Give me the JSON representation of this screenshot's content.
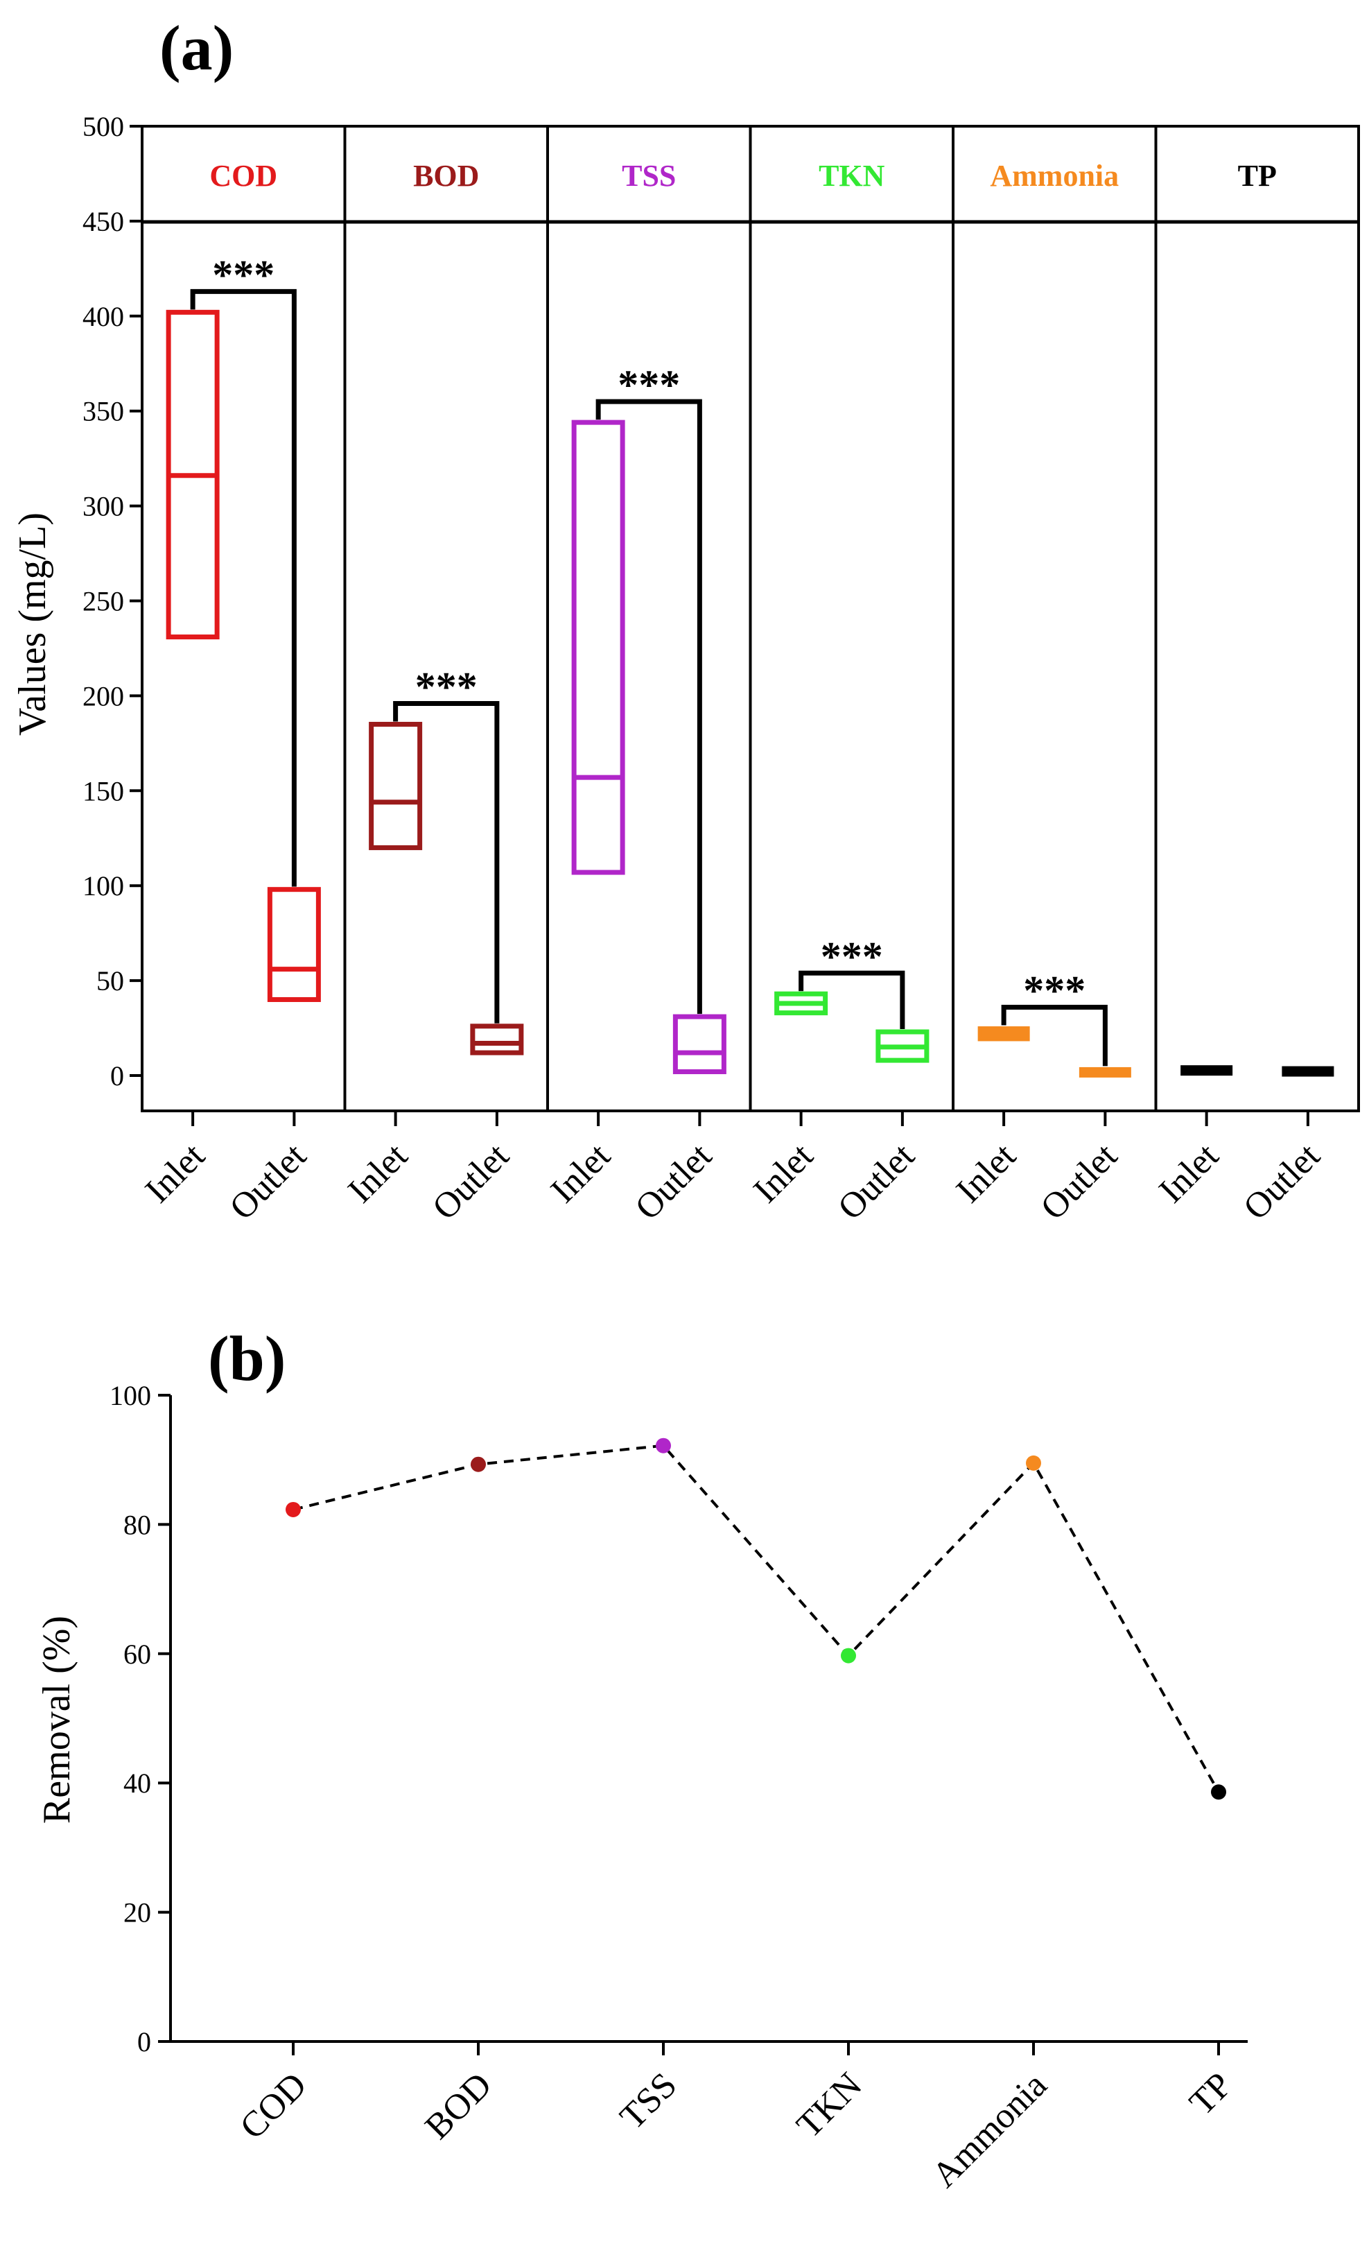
{
  "chart_data": [
    {
      "panel": "(a)",
      "type": "box",
      "ylabel": "Values (mg/L)",
      "ylim": [
        0,
        500
      ],
      "yticks": [
        0,
        50,
        100,
        150,
        200,
        250,
        300,
        350,
        400,
        450,
        500
      ],
      "groups": [
        {
          "name": "COD",
          "color": "#e31a1c",
          "significance": "***",
          "boxes": [
            {
              "label": "Inlet",
              "low": 231,
              "median": 316,
              "high": 402
            },
            {
              "label": "Outlet",
              "low": 40,
              "median": 56,
              "high": 98
            }
          ]
        },
        {
          "name": "BOD",
          "color": "#9b1b1b",
          "significance": "***",
          "boxes": [
            {
              "label": "Inlet",
              "low": 120,
              "median": 144,
              "high": 185
            },
            {
              "label": "Outlet",
              "low": 12,
              "median": 17,
              "high": 26
            }
          ]
        },
        {
          "name": "TSS",
          "color": "#b026c9",
          "significance": "***",
          "boxes": [
            {
              "label": "Inlet",
              "low": 107,
              "median": 157,
              "high": 344
            },
            {
              "label": "Outlet",
              "low": 2,
              "median": 12,
              "high": 31
            }
          ]
        },
        {
          "name": "TKN",
          "color": "#33e833",
          "significance": "***",
          "boxes": [
            {
              "label": "Inlet",
              "low": 33,
              "median": 38,
              "high": 43
            },
            {
              "label": "Outlet",
              "low": 8,
              "median": 15,
              "high": 23
            }
          ]
        },
        {
          "name": "Ammonia",
          "color": "#f58a1f",
          "significance": "***",
          "boxes": [
            {
              "label": "Inlet",
              "low": 19,
              "median": 22,
              "high": 25
            },
            {
              "label": "Outlet",
              "low": 1.5,
              "median": 2.5,
              "high": 3.5
            }
          ]
        },
        {
          "name": "TP",
          "color": "#000000",
          "significance": "",
          "boxes": [
            {
              "label": "Inlet",
              "low": 2.5,
              "median": 3.5,
              "high": 4.5
            },
            {
              "label": "Outlet",
              "low": 2,
              "median": 3,
              "high": 4
            }
          ]
        }
      ]
    },
    {
      "panel": "(b)",
      "type": "line",
      "ylabel": "Removal (%)",
      "ylim": [
        0,
        100
      ],
      "yticks": [
        0,
        20,
        40,
        60,
        80,
        100
      ],
      "categories": [
        "COD",
        "BOD",
        "TSS",
        "TKN",
        "Ammonia",
        "TP"
      ],
      "values": [
        82.3,
        89.3,
        92.2,
        59.7,
        89.5,
        38.6
      ],
      "colors": [
        "#e31a1c",
        "#9b1b1b",
        "#b026c9",
        "#33e833",
        "#f58a1f",
        "#000000"
      ]
    }
  ]
}
